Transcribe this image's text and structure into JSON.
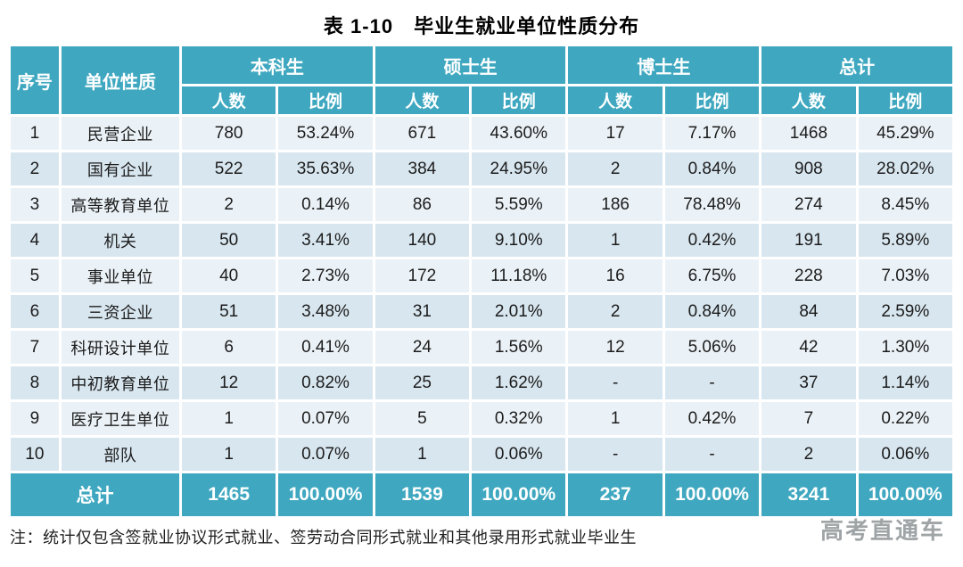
{
  "title": "表 1-10　毕业生就业单位性质分布",
  "colors": {
    "header_teal": "#3FA8C0",
    "row_light": "#EBF2F7",
    "row_dark": "#D8E6EF",
    "watermark_grey": "#9fa4a6"
  },
  "table": {
    "corner_headers": [
      "序号",
      "单位性质"
    ],
    "group_headers": [
      "本科生",
      "硕士生",
      "博士生",
      "总计"
    ],
    "sub_headers": [
      "人数",
      "比例"
    ],
    "rows": [
      {
        "no": "1",
        "unit": "民营企业",
        "values": [
          "780",
          "53.24%",
          "671",
          "43.60%",
          "17",
          "7.17%",
          "1468",
          "45.29%"
        ]
      },
      {
        "no": "2",
        "unit": "国有企业",
        "values": [
          "522",
          "35.63%",
          "384",
          "24.95%",
          "2",
          "0.84%",
          "908",
          "28.02%"
        ]
      },
      {
        "no": "3",
        "unit": "高等教育单位",
        "values": [
          "2",
          "0.14%",
          "86",
          "5.59%",
          "186",
          "78.48%",
          "274",
          "8.45%"
        ]
      },
      {
        "no": "4",
        "unit": "机关",
        "values": [
          "50",
          "3.41%",
          "140",
          "9.10%",
          "1",
          "0.42%",
          "191",
          "5.89%"
        ]
      },
      {
        "no": "5",
        "unit": "事业单位",
        "values": [
          "40",
          "2.73%",
          "172",
          "11.18%",
          "16",
          "6.75%",
          "228",
          "7.03%"
        ]
      },
      {
        "no": "6",
        "unit": "三资企业",
        "values": [
          "51",
          "3.48%",
          "31",
          "2.01%",
          "2",
          "0.84%",
          "84",
          "2.59%"
        ]
      },
      {
        "no": "7",
        "unit": "科研设计单位",
        "values": [
          "6",
          "0.41%",
          "24",
          "1.56%",
          "12",
          "5.06%",
          "42",
          "1.30%"
        ]
      },
      {
        "no": "8",
        "unit": "中初教育单位",
        "values": [
          "12",
          "0.82%",
          "25",
          "1.62%",
          "-",
          "-",
          "37",
          "1.14%"
        ]
      },
      {
        "no": "9",
        "unit": "医疗卫生单位",
        "values": [
          "1",
          "0.07%",
          "5",
          "0.32%",
          "1",
          "0.42%",
          "7",
          "0.22%"
        ]
      },
      {
        "no": "10",
        "unit": "部队",
        "values": [
          "1",
          "0.07%",
          "1",
          "0.06%",
          "-",
          "-",
          "2",
          "0.06%"
        ]
      }
    ],
    "total": {
      "label": "总计",
      "values": [
        "1465",
        "100.00%",
        "1539",
        "100.00%",
        "237",
        "100.00%",
        "3241",
        "100.00%"
      ]
    }
  },
  "note": "注：统计仅包含签就业协议形式就业、签劳动合同形式就业和其他录用形式就业毕业生",
  "watermark": "高考直通车"
}
